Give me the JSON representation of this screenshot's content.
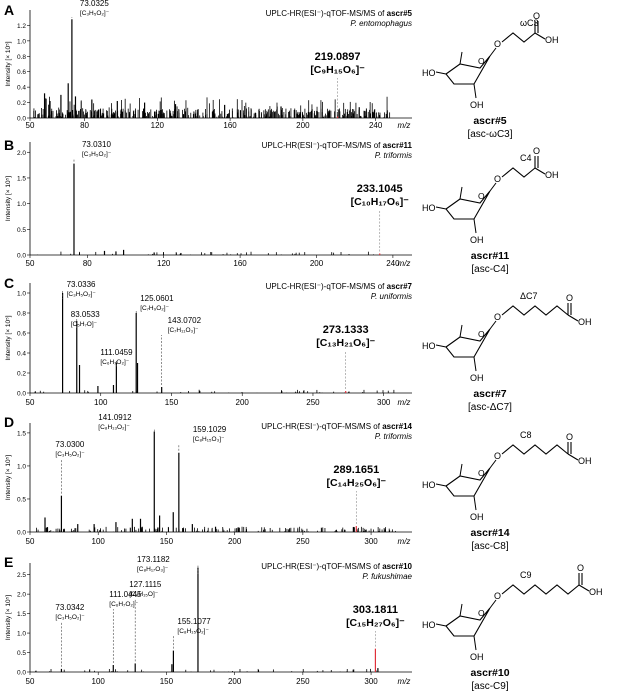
{
  "panels": [
    {
      "letter": "A",
      "title_prefix": "UPLC-HR(ESI⁻)-qTOF-MS/MS of ",
      "title_compound": "ascr#5",
      "organism": "P. entomophagus",
      "ylabel": "Intensity [× 10⁵]",
      "xaxis_unit": "m/z",
      "main_peak": {
        "mz": "219.0897",
        "formula": "[C₉H₁₅O₆]⁻"
      },
      "fragments": [
        {
          "mz": "73.0325",
          "formula": "[C₃H₅O₂]⁻"
        }
      ],
      "structure": {
        "chain_label": "ωC3",
        "name": "ascr#5",
        "alias": "[asc-ωC3]"
      }
    },
    {
      "letter": "B",
      "title_prefix": "UPLC-HR(ESI⁻)-qTOF-MS/MS of ",
      "title_compound": "ascr#11",
      "organism": "P. triformis",
      "ylabel": "Intensity [× 10⁵]",
      "xaxis_unit": "m/z",
      "main_peak": {
        "mz": "233.1045",
        "formula": "[C₁₀H₁₇O₆]⁻"
      },
      "fragments": [
        {
          "mz": "73.0310",
          "formula": "[C₃H₅O₂]⁻"
        }
      ],
      "structure": {
        "chain_label": "C4",
        "name": "ascr#11",
        "alias": "[asc-C4]"
      }
    },
    {
      "letter": "C",
      "title_prefix": "UPLC-HR(ESI⁻)-qTOF-MS/MS of ",
      "title_compound": "ascr#7",
      "organism": "P. uniformis",
      "ylabel": "Intensity [× 10⁵]",
      "xaxis_unit": "m/z",
      "main_peak": {
        "mz": "273.1333",
        "formula": "[C₁₃H₂₁O₆]⁻"
      },
      "fragments": [
        {
          "mz": "73.0336",
          "formula": "[C₃H₅O₂]⁻"
        },
        {
          "mz": "83.0533",
          "formula": "[C₅H₇O]⁻"
        },
        {
          "mz": "111.0459",
          "formula": "[C₆H₇O₂]⁻"
        },
        {
          "mz": "125.0601",
          "formula": "[C₇H₉O₂]⁻"
        },
        {
          "mz": "143.0702",
          "formula": "[C₇H₁₁O₃]⁻"
        }
      ],
      "structure": {
        "chain_label": "ΔC7",
        "name": "ascr#7",
        "alias": "[asc-ΔC7]"
      }
    },
    {
      "letter": "D",
      "title_prefix": "UPLC-HR(ESI⁻)-qTOF-MS/MS of ",
      "title_compound": "ascr#14",
      "organism": "P. triformis",
      "ylabel": "Intensity [× 10⁵]",
      "xaxis_unit": "m/z",
      "main_peak": {
        "mz": "289.1651",
        "formula": "[C₁₄H₂₅O₆]⁻"
      },
      "fragments": [
        {
          "mz": "73.0300",
          "formula": "[C₃H₅O₂]⁻"
        },
        {
          "mz": "141.0912",
          "formula": "[C₈H₁₃O₂]⁻"
        },
        {
          "mz": "159.1029",
          "formula": "[C₈H₁₅O₃]⁻"
        }
      ],
      "structure": {
        "chain_label": "C8",
        "name": "ascr#14",
        "alias": "[asc-C8]"
      }
    },
    {
      "letter": "E",
      "title_prefix": "UPLC-HR(ESI⁻)-qTOF-MS/MS of ",
      "title_compound": "ascr#10",
      "organism": "P. fukushimae",
      "ylabel": "Intensity [× 10⁵]",
      "xaxis_unit": "m/z",
      "main_peak": {
        "mz": "303.1811",
        "formula": "[C₁₅H₂₇O₆]⁻"
      },
      "fragments": [
        {
          "mz": "73.0342",
          "formula": "[C₃H₅O₂]⁻"
        },
        {
          "mz": "111.0445",
          "formula": "[C₆H₇O₂]⁻"
        },
        {
          "mz": "127.1115",
          "formula": "[C₈H₁₅O]⁻"
        },
        {
          "mz": "155.1077",
          "formula": "[C₈H₁₅O₂]⁻"
        },
        {
          "mz": "173.1182",
          "formula": "[C₈H₁₇O₃]⁻"
        }
      ],
      "structure": {
        "chain_label": "C9",
        "name": "ascr#10",
        "alias": "[asc-C9]"
      }
    }
  ],
  "chart_data": [
    {
      "type": "bar",
      "panel": "A",
      "xlim": [
        50,
        260
      ],
      "ylim": [
        0,
        1.4
      ],
      "xticks": [
        50,
        80,
        120,
        160,
        200,
        240
      ],
      "yticks": [
        0,
        0.2,
        0.4,
        0.6,
        0.8,
        1.0,
        1.2
      ],
      "noise": "dense",
      "peaks": [
        {
          "x": 73.0325,
          "y": 1.28
        },
        {
          "x": 219.0897,
          "y": 0.02,
          "highlight": true
        },
        {
          "x": 58,
          "y": 0.32
        },
        {
          "x": 61,
          "y": 0.22
        },
        {
          "x": 67,
          "y": 0.3
        },
        {
          "x": 71,
          "y": 0.45
        },
        {
          "x": 75,
          "y": 0.28
        },
        {
          "x": 84,
          "y": 0.24
        },
        {
          "x": 98,
          "y": 0.22
        },
        {
          "x": 113,
          "y": 0.2
        },
        {
          "x": 130,
          "y": 0.18
        },
        {
          "x": 157,
          "y": 0.17
        },
        {
          "x": 188,
          "y": 0.15
        },
        {
          "x": 231,
          "y": 0.14
        }
      ],
      "seed": 11
    },
    {
      "type": "bar",
      "panel": "B",
      "xlim": [
        50,
        250
      ],
      "ylim": [
        0,
        2.2
      ],
      "xticks": [
        50,
        80,
        120,
        160,
        200,
        240
      ],
      "yticks": [
        0,
        0.5,
        1.0,
        1.5,
        2.0
      ],
      "noise": "sparse",
      "peaks": [
        {
          "x": 73.031,
          "y": 1.78
        },
        {
          "x": 233.1045,
          "y": 0.03,
          "highlight": true
        },
        {
          "x": 89,
          "y": 0.08
        },
        {
          "x": 95,
          "y": 0.07
        },
        {
          "x": 99,
          "y": 0.1
        },
        {
          "x": 115,
          "y": 0.05
        },
        {
          "x": 129,
          "y": 0.04
        }
      ],
      "seed": 23
    },
    {
      "type": "bar",
      "panel": "C",
      "xlim": [
        50,
        320
      ],
      "ylim": [
        0,
        1.1
      ],
      "xticks": [
        50,
        100,
        150,
        200,
        250,
        300
      ],
      "yticks": [
        0,
        0.2,
        0.4,
        0.6,
        0.8,
        1.0
      ],
      "noise": "sparse",
      "peaks": [
        {
          "x": 73.0336,
          "y": 1.0
        },
        {
          "x": 83.0533,
          "y": 0.72
        },
        {
          "x": 111.0459,
          "y": 0.3
        },
        {
          "x": 125.0601,
          "y": 0.8
        },
        {
          "x": 143.0702,
          "y": 0.06
        },
        {
          "x": 273.1333,
          "y": 0.02,
          "highlight": true
        },
        {
          "x": 85,
          "y": 0.28
        },
        {
          "x": 98,
          "y": 0.07
        },
        {
          "x": 109,
          "y": 0.08
        },
        {
          "x": 126,
          "y": 0.3
        }
      ],
      "seed": 37
    },
    {
      "type": "bar",
      "panel": "D",
      "xlim": [
        50,
        330
      ],
      "ylim": [
        0,
        1.65
      ],
      "xticks": [
        50,
        100,
        150,
        200,
        250,
        300
      ],
      "yticks": [
        0,
        0.5,
        1.0,
        1.5
      ],
      "noise": "medium",
      "peaks": [
        {
          "x": 73.03,
          "y": 0.55
        },
        {
          "x": 141.0912,
          "y": 1.52
        },
        {
          "x": 159.1029,
          "y": 1.2
        },
        {
          "x": 289.1651,
          "y": 0.09,
          "highlight": true
        },
        {
          "x": 61,
          "y": 0.22
        },
        {
          "x": 85,
          "y": 0.12
        },
        {
          "x": 97,
          "y": 0.12
        },
        {
          "x": 113,
          "y": 0.15
        },
        {
          "x": 125,
          "y": 0.2
        },
        {
          "x": 131,
          "y": 0.2
        },
        {
          "x": 145,
          "y": 0.25
        },
        {
          "x": 155,
          "y": 0.3
        },
        {
          "x": 169,
          "y": 0.12
        },
        {
          "x": 186,
          "y": 0.08
        },
        {
          "x": 203,
          "y": 0.07
        }
      ],
      "seed": 51
    },
    {
      "type": "bar",
      "panel": "E",
      "xlim": [
        50,
        330
      ],
      "ylim": [
        0,
        2.8
      ],
      "xticks": [
        50,
        100,
        150,
        200,
        250,
        300
      ],
      "yticks": [
        0,
        0.5,
        1.0,
        1.5,
        2.0,
        2.5
      ],
      "noise": "sparse",
      "peaks": [
        {
          "x": 73.0342,
          "y": 0.08
        },
        {
          "x": 111.0445,
          "y": 0.18
        },
        {
          "x": 127.1115,
          "y": 0.22
        },
        {
          "x": 155.1077,
          "y": 0.55
        },
        {
          "x": 173.1182,
          "y": 2.68
        },
        {
          "x": 303.1811,
          "y": 0.6,
          "highlight": true
        },
        {
          "x": 305,
          "y": 0.1
        },
        {
          "x": 154,
          "y": 0.2
        }
      ],
      "seed": 67
    }
  ]
}
